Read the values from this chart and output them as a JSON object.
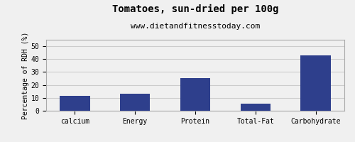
{
  "title": "Tomatoes, sun-dried per 100g",
  "subtitle": "www.dietandfitnesstoday.com",
  "categories": [
    "calcium",
    "Energy",
    "Protein",
    "Total-Fat",
    "Carbohydrate"
  ],
  "values": [
    11.5,
    13.0,
    25.5,
    5.5,
    43.0
  ],
  "bar_color": "#2e3f8c",
  "ylabel": "Percentage of RDH (%)",
  "ylim": [
    0,
    55
  ],
  "yticks": [
    0,
    10,
    20,
    30,
    40,
    50
  ],
  "background_color": "#f0f0f0",
  "plot_bg_color": "#f0f0f0",
  "title_fontsize": 10,
  "subtitle_fontsize": 8,
  "tick_fontsize": 7,
  "ylabel_fontsize": 7,
  "grid_color": "#cccccc",
  "bar_width": 0.5,
  "border_color": "#aaaaaa"
}
